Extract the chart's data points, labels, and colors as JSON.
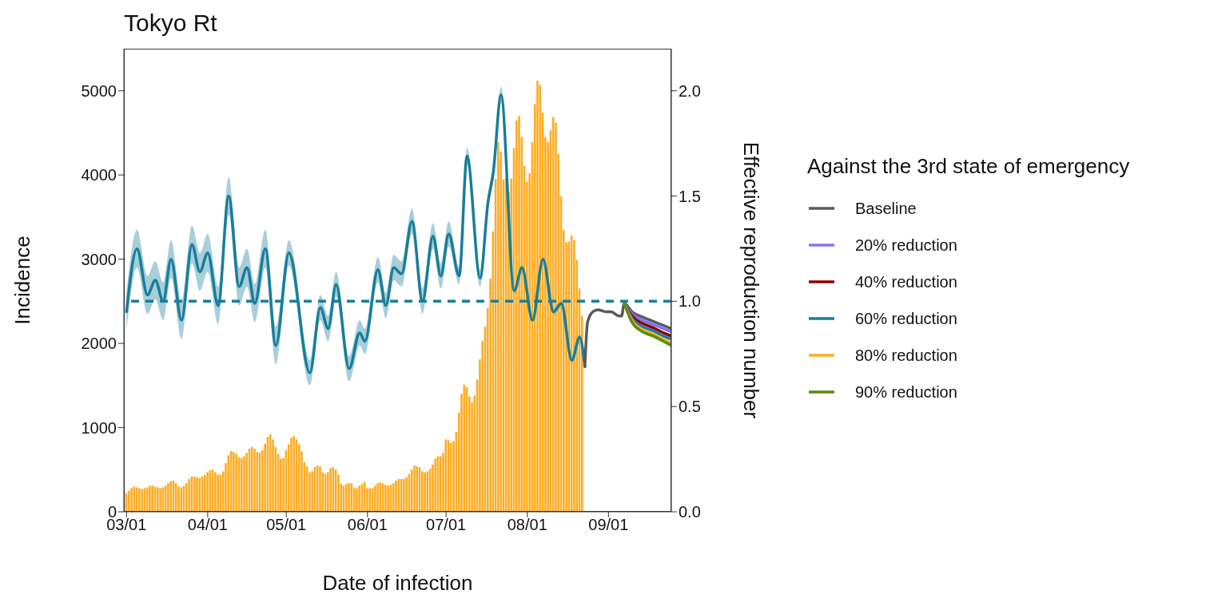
{
  "chart_data": {
    "type": "bar",
    "title": "Tokyo Rt",
    "xlabel": "Date of infection",
    "ylabel": "Incidence",
    "y2label": "Effective reproduction number",
    "legend_title": "Against the 3rd state of emergency",
    "legend": "right",
    "x": [
      "--03-01",
      "--03-02",
      "--03-03",
      "--03-04",
      "--03-05",
      "--03-06",
      "--03-07",
      "--03-08",
      "--03-09",
      "--03-10",
      "--03-11",
      "--03-12",
      "--03-13",
      "--03-14",
      "--03-15",
      "--03-16",
      "--03-17",
      "--03-18",
      "--03-19",
      "--03-20",
      "--03-21",
      "--03-22",
      "--03-23",
      "--03-24",
      "--03-25",
      "--03-26",
      "--03-27",
      "--03-28",
      "--03-29",
      "--03-30",
      "--03-31",
      "--04-01",
      "--04-02",
      "--04-03",
      "--04-04",
      "--04-05",
      "--04-06",
      "--04-07",
      "--04-08",
      "--04-09",
      "--04-10",
      "--04-11",
      "--04-12",
      "--04-13",
      "--04-14",
      "--04-15",
      "--04-16",
      "--04-17",
      "--04-18",
      "--04-19",
      "--04-20",
      "--04-21",
      "--04-22",
      "--04-23",
      "--04-24",
      "--04-25",
      "--04-26",
      "--04-27",
      "--04-28",
      "--04-29",
      "--04-30",
      "--05-01",
      "--05-02",
      "--05-03",
      "--05-04",
      "--05-05",
      "--05-06",
      "--05-07",
      "--05-08",
      "--05-09",
      "--05-10",
      "--05-11",
      "--05-12",
      "--05-13",
      "--05-14",
      "--05-15",
      "--05-16",
      "--05-17",
      "--05-18",
      "--05-19",
      "--05-20",
      "--05-21",
      "--05-22",
      "--05-23",
      "--05-24",
      "--05-25",
      "--05-26",
      "--05-27",
      "--05-28",
      "--05-29",
      "--05-30",
      "--05-31",
      "--06-01",
      "--06-02",
      "--06-03",
      "--06-04",
      "--06-05",
      "--06-06",
      "--06-07",
      "--06-08",
      "--06-09",
      "--06-10",
      "--06-11",
      "--06-12",
      "--06-13",
      "--06-14",
      "--06-15",
      "--06-16",
      "--06-17",
      "--06-18",
      "--06-19",
      "--06-20",
      "--06-21",
      "--06-22",
      "--06-23",
      "--06-24",
      "--06-25",
      "--06-26",
      "--06-27",
      "--06-28",
      "--06-29",
      "--06-30",
      "--07-01",
      "--07-02",
      "--07-03",
      "--07-04",
      "--07-05",
      "--07-06",
      "--07-07",
      "--07-08",
      "--07-09",
      "--07-10",
      "--07-11",
      "--07-12",
      "--07-13",
      "--07-14",
      "--07-15",
      "--07-16",
      "--07-17",
      "--07-18",
      "--07-19",
      "--07-20",
      "--07-21",
      "--07-22",
      "--07-23",
      "--07-24",
      "--07-25",
      "--07-26",
      "--07-27",
      "--07-28",
      "--07-29",
      "--07-30",
      "--07-31",
      "--08-01",
      "--08-02",
      "--08-03",
      "--08-04",
      "--08-05",
      "--08-06",
      "--08-07",
      "--08-08",
      "--08-09",
      "--08-10",
      "--08-11",
      "--08-12",
      "--08-13",
      "--08-14",
      "--08-15",
      "--08-16",
      "--08-17",
      "--08-18",
      "--08-19",
      "--08-20",
      "--08-21",
      "--08-22"
    ],
    "xlim": [
      "--02-28",
      "--09-25"
    ],
    "xticks": [
      {
        "value": "--03-01",
        "label": "03/01"
      },
      {
        "value": "--04-01",
        "label": "04/01"
      },
      {
        "value": "--05-01",
        "label": "05/01"
      },
      {
        "value": "--06-01",
        "label": "06/01"
      },
      {
        "value": "--07-01",
        "label": "07/01"
      },
      {
        "value": "--08-01",
        "label": "08/01"
      },
      {
        "value": "--09-01",
        "label": "09/01"
      }
    ],
    "ylim": [
      0,
      5500
    ],
    "yticks": [
      0,
      1000,
      2000,
      3000,
      4000,
      5000
    ],
    "y2lim": [
      0,
      2.2
    ],
    "y2ticks": [
      {
        "value": 0,
        "label": "0.0"
      },
      0.5,
      {
        "value": 1,
        "label": "1.0"
      },
      1.5,
      {
        "value": 2,
        "label": "2.0"
      }
    ],
    "ref_lines": [
      {
        "axis": "y2",
        "value": 1,
        "color": "#177e9b",
        "line_style": "dashed"
      }
    ],
    "series": [
      {
        "color": "#fbad26",
        "values": [
          220,
          250,
          280,
          300,
          290,
          280,
          270,
          280,
          290,
          310,
          310,
          300,
          290,
          280,
          290,
          310,
          340,
          360,
          370,
          340,
          300,
          290,
          310,
          340,
          390,
          420,
          420,
          410,
          400,
          420,
          440,
          470,
          490,
          500,
          470,
          440,
          440,
          480,
          580,
          670,
          720,
          710,
          690,
          650,
          640,
          660,
          700,
          750,
          770,
          750,
          710,
          700,
          730,
          810,
          890,
          920,
          860,
          770,
          690,
          630,
          640,
          730,
          800,
          880,
          900,
          860,
          800,
          720,
          590,
          540,
          470,
          480,
          530,
          550,
          540,
          470,
          450,
          470,
          520,
          530,
          500,
          440,
          330,
          310,
          330,
          340,
          340,
          290,
          280,
          310,
          330,
          350,
          280,
          280,
          280,
          310,
          340,
          350,
          340,
          320,
          310,
          320,
          340,
          370,
          390,
          390,
          390,
          410,
          450,
          500,
          550,
          540,
          530,
          480,
          470,
          480,
          510,
          560,
          630,
          660,
          660,
          700,
          860,
          850,
          820,
          840,
          950,
          1180,
          1400,
          1510,
          1480,
          1370,
          1300,
          1380,
          1570,
          1810,
          2030,
          2200,
          2420,
          2770,
          3330,
          3950,
          4390,
          4280,
          3950,
          3960,
          3800,
          3960,
          4320,
          4650,
          4700,
          4450,
          4110,
          3920,
          4020,
          4390,
          4840,
          5120,
          5070,
          4740,
          4450,
          4390,
          4530,
          4690,
          4620,
          4250,
          3750,
          3350,
          3200,
          3210,
          3280,
          3230,
          2990,
          2650,
          2330
        ]
      },
      {
        "type": "line",
        "axis": "y2",
        "color": "#177e9b",
        "x": [
          "--03-01",
          "--03-05",
          "--03-09",
          "--03-12",
          "--03-15",
          "--03-18",
          "--03-22",
          "--03-26",
          "--03-29",
          "--04-01",
          "--04-05",
          "--04-09",
          "--04-13",
          "--04-16",
          "--04-19",
          "--04-23",
          "--04-27",
          "--05-02",
          "--05-10",
          "--05-14",
          "--05-17",
          "--05-20",
          "--05-25",
          "--05-29",
          "--05-31",
          "--06-05",
          "--06-08",
          "--06-11",
          "--06-14",
          "--06-18",
          "--06-22",
          "--06-26",
          "--06-29",
          "--07-02",
          "--07-06",
          "--07-09",
          "--07-14",
          "--07-17",
          "--07-19",
          "--07-22",
          "--07-27",
          "--07-30",
          "--08-03",
          "--08-07",
          "--08-11",
          "--08-14",
          "--08-18",
          "--08-21",
          "--08-23"
        ],
        "values": [
          0.95,
          1.25,
          1.03,
          1.1,
          1.0,
          1.2,
          0.91,
          1.27,
          1.14,
          1.23,
          0.98,
          1.5,
          1.07,
          1.16,
          0.99,
          1.25,
          0.79,
          1.23,
          0.66,
          0.97,
          0.87,
          1.08,
          0.68,
          0.85,
          0.81,
          1.15,
          0.98,
          1.16,
          1.13,
          1.38,
          1.0,
          1.31,
          1.12,
          1.32,
          1.12,
          1.69,
          1.11,
          1.47,
          1.61,
          1.98,
          1.05,
          1.16,
          0.91,
          1.2,
          0.95,
          0.99,
          0.72,
          0.83,
          0.69
        ],
        "lower": [
          0.86,
          1.16,
          0.94,
          1.01,
          0.91,
          1.11,
          0.82,
          1.18,
          1.05,
          1.14,
          0.89,
          1.41,
          0.98,
          1.07,
          0.9,
          1.16,
          0.7,
          1.17,
          0.6,
          0.91,
          0.81,
          1.02,
          0.62,
          0.79,
          0.75,
          1.09,
          0.92,
          1.1,
          1.07,
          1.32,
          0.94,
          1.25,
          1.06,
          1.26,
          1.08,
          1.65,
          1.07,
          1.43,
          1.57,
          1.94,
          1.03,
          1.14,
          0.89,
          1.18,
          0.93,
          0.97,
          0.7,
          0.81,
          0.67
        ],
        "upper": [
          1.04,
          1.34,
          1.12,
          1.19,
          1.09,
          1.29,
          1.0,
          1.36,
          1.23,
          1.32,
          1.07,
          1.59,
          1.16,
          1.25,
          1.08,
          1.34,
          0.88,
          1.29,
          0.72,
          1.03,
          0.93,
          1.14,
          0.74,
          0.91,
          0.87,
          1.21,
          1.04,
          1.22,
          1.19,
          1.44,
          1.06,
          1.37,
          1.18,
          1.38,
          1.16,
          1.73,
          1.15,
          1.51,
          1.65,
          2.02,
          1.07,
          1.18,
          0.93,
          1.22,
          0.97,
          1.01,
          0.74,
          0.85,
          0.71
        ]
      },
      {
        "name": "Baseline",
        "type": "line",
        "axis": "y2",
        "color": "#5a5a5a",
        "x": [
          "--08-23",
          "--08-24",
          "--08-26",
          "--08-28",
          "--08-31",
          "--09-02",
          "--09-05",
          "--09-06",
          "--09-07",
          "--09-10",
          "--09-14",
          "--09-18",
          "--09-22",
          "--09-25"
        ],
        "values": [
          0.69,
          0.9,
          0.95,
          0.96,
          0.95,
          0.95,
          0.93,
          0.93,
          0.99,
          0.95,
          0.925,
          0.905,
          0.885,
          0.87
        ]
      },
      {
        "name": "20% reduction",
        "type": "line",
        "axis": "y2",
        "color": "#8470ff",
        "x": [
          "--09-07",
          "--09-10",
          "--09-14",
          "--09-18",
          "--09-22",
          "--09-25"
        ],
        "values": [
          0.99,
          0.94,
          0.91,
          0.89,
          0.87,
          0.855
        ]
      },
      {
        "name": "40% reduction",
        "type": "line",
        "axis": "y2",
        "color": "#8b0000",
        "x": [
          "--09-07",
          "--09-10",
          "--09-14",
          "--09-18",
          "--09-22",
          "--09-25"
        ],
        "values": [
          0.99,
          0.93,
          0.895,
          0.875,
          0.85,
          0.835
        ]
      },
      {
        "name": "60% reduction",
        "type": "line",
        "axis": "y2",
        "color": "#177e9b",
        "x": [
          "--09-07",
          "--09-10",
          "--09-14",
          "--09-18",
          "--09-22",
          "--09-25"
        ],
        "values": [
          0.99,
          0.92,
          0.88,
          0.86,
          0.835,
          0.82
        ]
      },
      {
        "name": "80% reduction",
        "type": "line",
        "axis": "y2",
        "color": "#fbad26",
        "x": [
          "--09-07",
          "--09-10",
          "--09-14",
          "--09-18",
          "--09-22",
          "--09-25"
        ],
        "values": [
          0.99,
          0.91,
          0.865,
          0.845,
          0.82,
          0.8
        ]
      },
      {
        "name": "90% reduction",
        "type": "line",
        "axis": "y2",
        "color": "#5b8a0e",
        "x": [
          "--09-07",
          "--09-10",
          "--09-14",
          "--09-18",
          "--09-22",
          "--09-25"
        ],
        "values": [
          0.99,
          0.9,
          0.855,
          0.835,
          0.81,
          0.79
        ]
      }
    ]
  }
}
